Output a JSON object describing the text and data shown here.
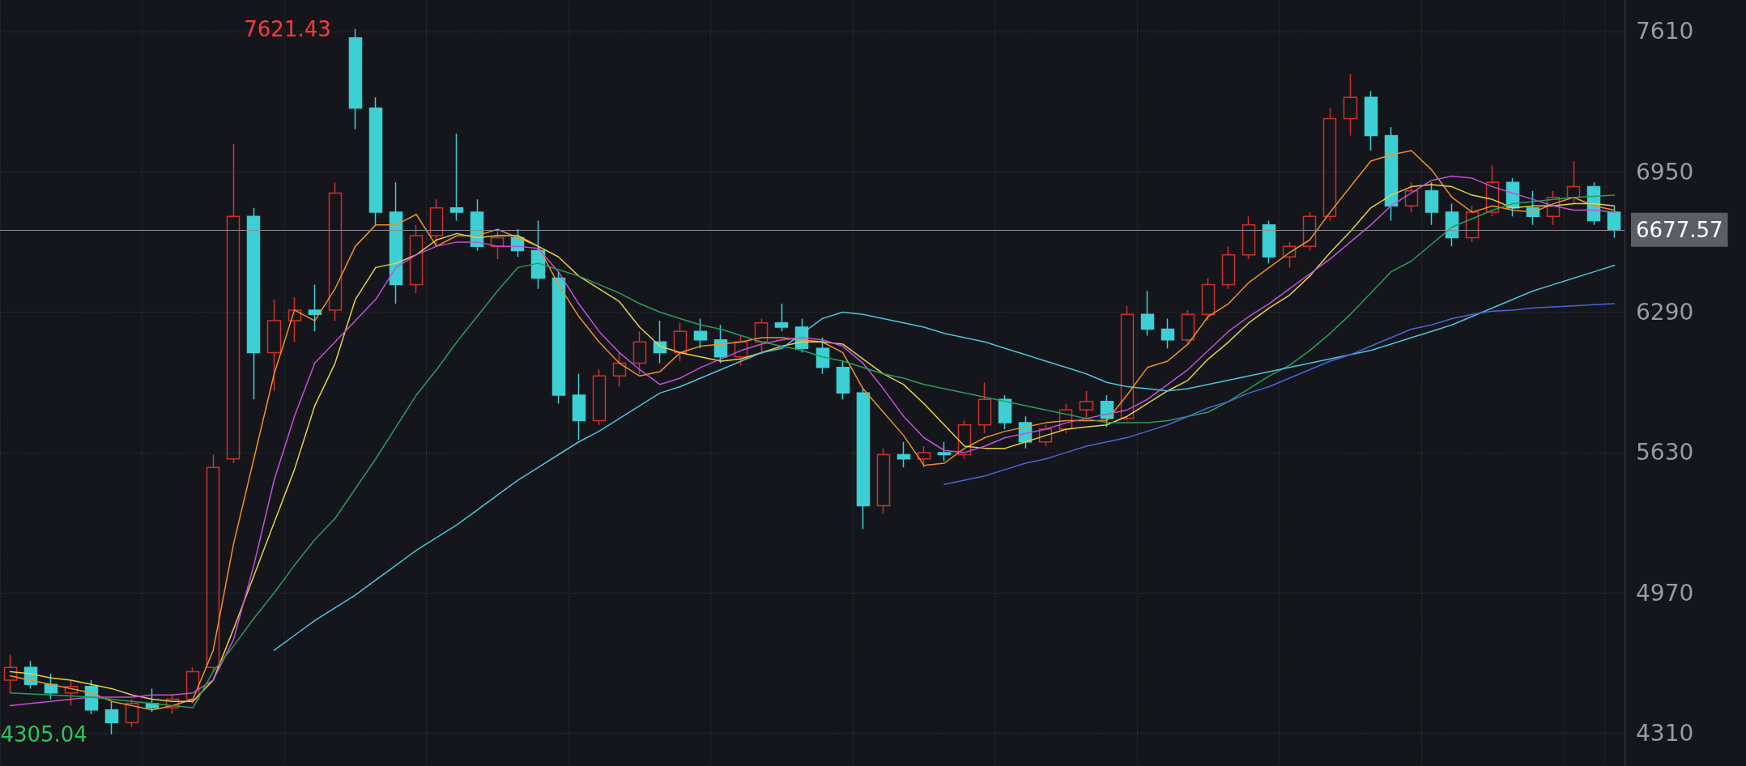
{
  "chart_data": {
    "type": "candlestick",
    "categories": [
      null,
      null,
      null,
      null,
      null,
      null,
      null,
      null,
      null,
      null,
      null,
      null,
      null,
      null,
      null,
      null,
      null,
      null,
      null,
      null,
      null,
      null,
      null,
      null,
      null,
      null,
      null,
      null,
      null,
      null,
      null,
      null,
      null,
      null,
      null,
      null,
      null,
      null,
      null,
      null,
      null,
      null,
      null,
      null,
      null,
      null,
      null,
      null,
      null,
      null,
      null,
      null,
      null,
      null,
      null,
      null,
      null,
      null,
      null,
      null,
      null,
      null,
      null,
      null,
      null,
      null,
      null,
      null,
      null,
      null,
      null,
      null,
      null,
      null,
      null,
      null,
      null,
      null,
      null,
      null
    ],
    "series": [
      {
        "ohlc": [
          [
            4560,
            4680,
            4500,
            4620
          ],
          [
            4620,
            4650,
            4520,
            4540
          ],
          [
            4540,
            4590,
            4470,
            4500
          ],
          [
            4500,
            4560,
            4440,
            4530
          ],
          [
            4530,
            4560,
            4400,
            4420
          ],
          [
            4420,
            4460,
            4305.04,
            4360
          ],
          [
            4360,
            4470,
            4340,
            4450
          ],
          [
            4450,
            4520,
            4410,
            4430
          ],
          [
            4430,
            4490,
            4400,
            4470
          ],
          [
            4470,
            4620,
            4450,
            4600
          ],
          [
            4620,
            5620,
            4600,
            5560
          ],
          [
            5600,
            7080,
            5580,
            6740
          ],
          [
            6740,
            6780,
            5880,
            6100
          ],
          [
            6100,
            6350,
            5920,
            6250
          ],
          [
            6250,
            6360,
            6150,
            6300
          ],
          [
            6300,
            6420,
            6200,
            6280
          ],
          [
            6300,
            6900,
            6250,
            6850
          ],
          [
            7580,
            7621.43,
            7150,
            7250
          ],
          [
            7250,
            7300,
            6700,
            6760
          ],
          [
            6760,
            6900,
            6330,
            6420
          ],
          [
            6420,
            6700,
            6380,
            6650
          ],
          [
            6650,
            6820,
            6600,
            6780
          ],
          [
            6780,
            7130,
            6720,
            6760
          ],
          [
            6760,
            6820,
            6580,
            6600
          ],
          [
            6600,
            6680,
            6540,
            6640
          ],
          [
            6640,
            6680,
            6550,
            6580
          ],
          [
            6580,
            6720,
            6400,
            6450
          ],
          [
            6450,
            6480,
            5860,
            5900
          ],
          [
            5900,
            6000,
            5690,
            5780
          ],
          [
            5780,
            6020,
            5760,
            5990
          ],
          [
            5990,
            6100,
            5940,
            6050
          ],
          [
            6050,
            6200,
            6000,
            6150
          ],
          [
            6150,
            6250,
            6050,
            6100
          ],
          [
            6100,
            6240,
            6060,
            6200
          ],
          [
            6200,
            6260,
            6120,
            6160
          ],
          [
            6160,
            6230,
            6050,
            6080
          ],
          [
            6080,
            6180,
            6040,
            6150
          ],
          [
            6150,
            6260,
            6090,
            6240
          ],
          [
            6240,
            6330,
            6200,
            6220
          ],
          [
            6220,
            6260,
            6100,
            6120
          ],
          [
            6120,
            6170,
            6000,
            6030
          ],
          [
            6030,
            6060,
            5880,
            5910
          ],
          [
            5910,
            5930,
            5270,
            5380
          ],
          [
            5380,
            5650,
            5340,
            5620
          ],
          [
            5620,
            5680,
            5560,
            5600
          ],
          [
            5600,
            5660,
            5560,
            5630
          ],
          [
            5630,
            5680,
            5590,
            5620
          ],
          [
            5620,
            5780,
            5600,
            5760
          ],
          [
            5760,
            5960,
            5720,
            5880
          ],
          [
            5880,
            5900,
            5740,
            5770
          ],
          [
            5770,
            5800,
            5650,
            5680
          ],
          [
            5680,
            5760,
            5660,
            5740
          ],
          [
            5740,
            5860,
            5720,
            5830
          ],
          [
            5830,
            5920,
            5790,
            5870
          ],
          [
            5870,
            5900,
            5750,
            5790
          ],
          [
            5790,
            6320,
            5780,
            6280
          ],
          [
            6280,
            6390,
            6180,
            6210
          ],
          [
            6210,
            6260,
            6120,
            6160
          ],
          [
            6160,
            6300,
            6140,
            6280
          ],
          [
            6280,
            6450,
            6250,
            6420
          ],
          [
            6420,
            6600,
            6400,
            6560
          ],
          [
            6560,
            6740,
            6540,
            6700
          ],
          [
            6700,
            6720,
            6520,
            6550
          ],
          [
            6550,
            6620,
            6500,
            6600
          ],
          [
            6600,
            6760,
            6580,
            6740
          ],
          [
            6740,
            7250,
            6720,
            7200
          ],
          [
            7200,
            7410,
            7120,
            7300
          ],
          [
            7300,
            7330,
            7050,
            7120
          ],
          [
            7120,
            7160,
            6720,
            6790
          ],
          [
            6790,
            6900,
            6760,
            6860
          ],
          [
            6860,
            6900,
            6700,
            6760
          ],
          [
            6760,
            6800,
            6600,
            6640
          ],
          [
            6640,
            6790,
            6620,
            6760
          ],
          [
            6760,
            6980,
            6740,
            6900
          ],
          [
            6900,
            6920,
            6740,
            6780
          ],
          [
            6780,
            6860,
            6700,
            6740
          ],
          [
            6740,
            6860,
            6700,
            6830
          ],
          [
            6830,
            7000,
            6800,
            6880
          ],
          [
            6880,
            6900,
            6700,
            6720
          ],
          [
            6760,
            6790,
            6640,
            6677.57
          ]
        ],
        "colors": [
          "#d0302f",
          "#3ccfd4",
          "#3ccfd4",
          "#d0302f",
          "#3ccfd4",
          "#3ccfd4",
          "#d0302f",
          "#3ccfd4",
          "#d0302f",
          "#d0302f",
          "#d0302f",
          "#d0302f",
          "#3ccfd4",
          "#d0302f",
          "#d0302f",
          "#3ccfd4",
          "#d0302f",
          "#3ccfd4",
          "#3ccfd4",
          "#3ccfd4",
          "#d0302f",
          "#d0302f",
          "#3ccfd4",
          "#3ccfd4",
          "#d0302f",
          "#3ccfd4",
          "#3ccfd4",
          "#3ccfd4",
          "#3ccfd4",
          "#d0302f",
          "#d0302f",
          "#d0302f",
          "#3ccfd4",
          "#d0302f",
          "#3ccfd4",
          "#3ccfd4",
          "#d0302f",
          "#d0302f",
          "#3ccfd4",
          "#3ccfd4",
          "#3ccfd4",
          "#3ccfd4",
          "#3ccfd4",
          "#d0302f",
          "#3ccfd4",
          "#d0302f",
          "#3ccfd4",
          "#d0302f",
          "#d0302f",
          "#3ccfd4",
          "#3ccfd4",
          "#d0302f",
          "#d0302f",
          "#d0302f",
          "#3ccfd4",
          "#d0302f",
          "#3ccfd4",
          "#3ccfd4",
          "#d0302f",
          "#d0302f",
          "#d0302f",
          "#d0302f",
          "#3ccfd4",
          "#d0302f",
          "#d0302f",
          "#d0302f",
          "#d0302f",
          "#3ccfd4",
          "#3ccfd4",
          "#d0302f",
          "#3ccfd4",
          "#3ccfd4",
          "#d0302f",
          "#d0302f",
          "#3ccfd4",
          "#3ccfd4",
          "#d0302f",
          "#d0302f",
          "#3ccfd4",
          "#3ccfd4"
        ]
      },
      {
        "type": "line",
        "color": "#f0902a",
        "values": [
          4580,
          4560,
          4540,
          4520,
          4500,
          4460,
          4440,
          4420,
          4440,
          4470,
          4700,
          5200,
          5600,
          6000,
          6300,
          6250,
          6400,
          6600,
          6700,
          6700,
          6750,
          6600,
          6650,
          6650,
          6680,
          6640,
          6600,
          6420,
          6270,
          6150,
          6050,
          5990,
          6010,
          6100,
          6130,
          6140,
          6150,
          6170,
          6170,
          6160,
          6150,
          6100,
          5930,
          5820,
          5710,
          5570,
          5580,
          5650,
          5700,
          5730,
          5750,
          5770,
          5780,
          5780,
          5780,
          5900,
          6030,
          6060,
          6140,
          6270,
          6330,
          6430,
          6500,
          6570,
          6630,
          6760,
          6880,
          7000,
          7030,
          7050,
          6960,
          6830,
          6760,
          6790,
          6770,
          6760,
          6800,
          6830,
          6790,
          6770
        ]
      },
      {
        "type": "line",
        "color": "#e6d048",
        "values": [
          4600,
          4590,
          4570,
          4560,
          4540,
          4520,
          4490,
          4470,
          4460,
          4460,
          4560,
          4800,
          5050,
          5300,
          5550,
          5850,
          6050,
          6350,
          6500,
          6520,
          6560,
          6630,
          6660,
          6640,
          6650,
          6650,
          6600,
          6550,
          6460,
          6400,
          6340,
          6220,
          6130,
          6100,
          6080,
          6060,
          6070,
          6100,
          6130,
          6150,
          6150,
          6140,
          6070,
          6000,
          5950,
          5860,
          5760,
          5660,
          5650,
          5650,
          5680,
          5710,
          5740,
          5750,
          5760,
          5800,
          5860,
          5920,
          5970,
          6070,
          6150,
          6240,
          6310,
          6370,
          6460,
          6570,
          6670,
          6780,
          6840,
          6880,
          6890,
          6880,
          6840,
          6820,
          6780,
          6790,
          6790,
          6800,
          6800,
          6790
        ]
      },
      {
        "type": "line",
        "color": "#c94fd6",
        "values": [
          4440,
          4450,
          4460,
          4470,
          4480,
          4480,
          4480,
          4490,
          4490,
          4500,
          4560,
          4750,
          5100,
          5500,
          5800,
          6050,
          6150,
          6250,
          6350,
          6500,
          6560,
          6600,
          6620,
          6620,
          6600,
          6600,
          6590,
          6480,
          6330,
          6200,
          6100,
          6020,
          5950,
          5980,
          6030,
          6070,
          6110,
          6140,
          6160,
          6170,
          6160,
          6130,
          6050,
          5930,
          5800,
          5700,
          5640,
          5630,
          5660,
          5700,
          5720,
          5740,
          5770,
          5790,
          5810,
          5830,
          5880,
          5950,
          6020,
          6110,
          6200,
          6270,
          6330,
          6400,
          6470,
          6540,
          6620,
          6700,
          6790,
          6850,
          6910,
          6930,
          6920,
          6880,
          6850,
          6820,
          6790,
          6770,
          6770,
          6760
        ]
      },
      {
        "type": "line",
        "color": "#2a9d5a",
        "values": [
          4500,
          4495,
          4490,
          4485,
          4480,
          4470,
          4460,
          4450,
          4440,
          4430,
          4600,
          4720,
          4850,
          4970,
          5100,
          5220,
          5320,
          5460,
          5600,
          5750,
          5900,
          6020,
          6150,
          6270,
          6390,
          6500,
          6520,
          6490,
          6460,
          6420,
          6380,
          6330,
          6290,
          6260,
          6230,
          6210,
          6180,
          6150,
          6130,
          6110,
          6080,
          6060,
          6030,
          6000,
          5980,
          5950,
          5930,
          5910,
          5890,
          5870,
          5850,
          5830,
          5810,
          5790,
          5770,
          5770,
          5770,
          5780,
          5800,
          5820,
          5870,
          5930,
          5990,
          6040,
          6110,
          6190,
          6280,
          6380,
          6480,
          6530,
          6610,
          6690,
          6730,
          6770,
          6800,
          6810,
          6820,
          6830,
          6835,
          6840
        ]
      },
      {
        "type": "line",
        "color": "#4fc3d9",
        "values": [
          null,
          null,
          null,
          null,
          null,
          null,
          null,
          null,
          null,
          null,
          null,
          null,
          null,
          4700,
          4770,
          4840,
          4900,
          4960,
          5030,
          5100,
          5170,
          5230,
          5290,
          5360,
          5430,
          5500,
          5560,
          5620,
          5680,
          5730,
          5790,
          5850,
          5910,
          5940,
          5980,
          6020,
          6060,
          6100,
          6120,
          6190,
          6260,
          6290,
          6280,
          6260,
          6240,
          6220,
          6190,
          6170,
          6150,
          6120,
          6090,
          6060,
          6030,
          6000,
          5960,
          5940,
          5930,
          5920,
          5930,
          5950,
          5970,
          5990,
          6010,
          6030,
          6050,
          6070,
          6090,
          6110,
          6140,
          6170,
          6200,
          6230,
          6270,
          6310,
          6350,
          6390,
          6420,
          6450,
          6480,
          6510
        ]
      },
      {
        "type": "line",
        "color": "#4a66d8",
        "values": [
          null,
          null,
          null,
          null,
          null,
          null,
          null,
          null,
          null,
          null,
          null,
          null,
          null,
          null,
          null,
          null,
          null,
          null,
          null,
          null,
          null,
          null,
          null,
          null,
          null,
          null,
          null,
          null,
          null,
          null,
          null,
          null,
          null,
          null,
          null,
          null,
          null,
          null,
          null,
          null,
          null,
          null,
          null,
          null,
          null,
          null,
          5480,
          5500,
          5520,
          5550,
          5580,
          5600,
          5630,
          5660,
          5680,
          5700,
          5730,
          5760,
          5800,
          5840,
          5870,
          5910,
          5940,
          5980,
          6020,
          6060,
          6090,
          6130,
          6170,
          6210,
          6230,
          6260,
          6280,
          6295,
          6300,
          6310,
          6315,
          6320,
          6325,
          6330
        ]
      }
    ],
    "ylim": [
      4156,
      7758
    ],
    "yticks": [
      4310,
      4970,
      5630,
      6290,
      6950,
      7610
    ],
    "grid": true,
    "marker": "none",
    "annotations": [
      "7621.43",
      "4305.04"
    ],
    "ref_lines": [
      {
        "axis": "y",
        "value": 6677.57,
        "label": "6677.57",
        "color": "#8a8d94"
      }
    ]
  }
}
